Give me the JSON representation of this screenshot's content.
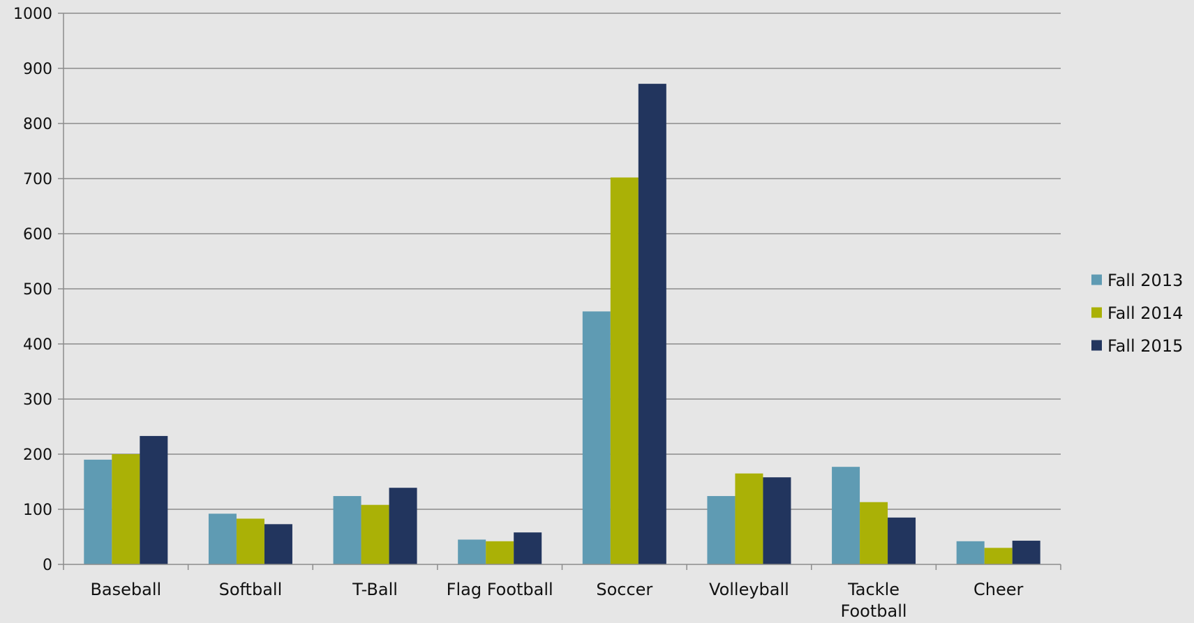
{
  "chart_data": {
    "type": "bar",
    "categories": [
      "Baseball",
      "Softball",
      "T-Ball",
      "Flag Football",
      "Soccer",
      "Volleyball",
      "Tackle Football",
      "Cheer"
    ],
    "category_lines": [
      [
        "Baseball"
      ],
      [
        "Softball"
      ],
      [
        "T-Ball"
      ],
      [
        "Flag Football"
      ],
      [
        "Soccer"
      ],
      [
        "Volleyball"
      ],
      [
        "Tackle",
        "Football"
      ],
      [
        "Cheer"
      ]
    ],
    "series": [
      {
        "name": "Fall 2013",
        "color": "#5f9bb3",
        "values": [
          190,
          92,
          124,
          45,
          459,
          124,
          177,
          42
        ]
      },
      {
        "name": "Fall 2014",
        "color": "#aab106",
        "values": [
          200,
          83,
          108,
          42,
          702,
          165,
          113,
          30
        ]
      },
      {
        "name": "Fall 2015",
        "color": "#22355e",
        "values": [
          233,
          73,
          139,
          58,
          872,
          158,
          85,
          43
        ]
      }
    ],
    "ylim": [
      0,
      1000
    ],
    "yticks": [
      0,
      100,
      200,
      300,
      400,
      500,
      600,
      700,
      800,
      900,
      1000
    ],
    "ytick_labels": [
      "0",
      "100",
      "200",
      "300",
      "400",
      "500",
      "600",
      "700",
      "800",
      "900",
      "1000"
    ],
    "grid": true,
    "legend_position": "right",
    "title": "",
    "xlabel": "",
    "ylabel": "",
    "gridline_color": "#8c8c8c",
    "axis_color": "#8c8c8c"
  }
}
